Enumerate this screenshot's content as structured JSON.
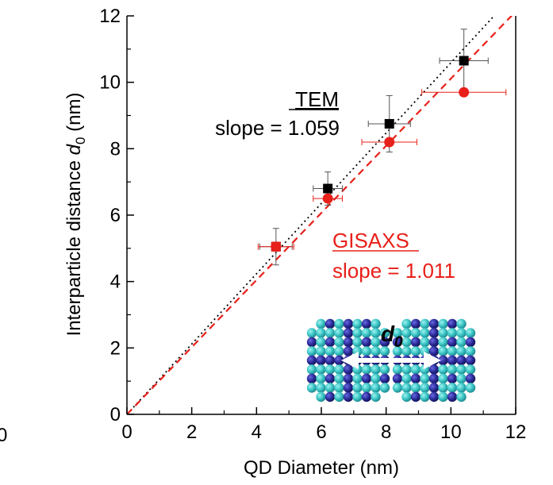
{
  "chart_data": {
    "type": "scatter",
    "xlabel": "QD Diameter (nm)",
    "ylabel_prefix": "Interparticle distance",
    "ylabel_symbol": "d",
    "ylabel_subscript": "0",
    "ylabel_unit": "(nm)",
    "xlim": [
      0,
      12
    ],
    "ylim": [
      0,
      12
    ],
    "xticks": [
      "0",
      "2",
      "4",
      "6",
      "8",
      "10",
      "12"
    ],
    "yticks": [
      "0",
      "2",
      "4",
      "6",
      "8",
      "10",
      "12"
    ],
    "stray_tick_label": "0",
    "series": [
      {
        "name": "TEM",
        "marker": "square",
        "color": "#000000",
        "points": [
          {
            "x": 4.6,
            "y": 5.05,
            "xerr": 0.5,
            "yerr": 0.55
          },
          {
            "x": 6.2,
            "y": 6.8,
            "xerr": 0.45,
            "yerr": 0.5
          },
          {
            "x": 8.1,
            "y": 8.75,
            "xerr": 0.65,
            "yerr": 0.85
          },
          {
            "x": 10.4,
            "y": 10.65,
            "xerr": 0.75,
            "yerr": 0.95
          }
        ],
        "fit": {
          "slope": 1.059,
          "style": "dotted"
        },
        "label": "TEM",
        "slope_text": "slope = 1.059"
      },
      {
        "name": "GISAXS",
        "marker": "circle",
        "color": "#e8201a",
        "points": [
          {
            "x": 4.6,
            "y": 5.05,
            "xerr": 0.55,
            "yerr": 0.0
          },
          {
            "x": 6.2,
            "y": 6.5,
            "xerr": 0.45,
            "yerr": 0.0
          },
          {
            "x": 8.1,
            "y": 8.2,
            "xerr": 0.85,
            "yerr": 0.0
          },
          {
            "x": 10.4,
            "y": 9.7,
            "xerr": 1.3,
            "yerr": 0.0
          }
        ],
        "fit": {
          "slope": 1.011,
          "style": "dashed"
        },
        "label": "GISAXS",
        "slope_text": "slope = 1.011"
      }
    ],
    "inset": {
      "symbol": "d",
      "subscript": "0",
      "description_colors": {
        "ball": "#3ec8c8",
        "ball_dark": "#2fa3a8",
        "ligand": "#2a2a9a",
        "arrow": "#ffffff"
      }
    }
  }
}
